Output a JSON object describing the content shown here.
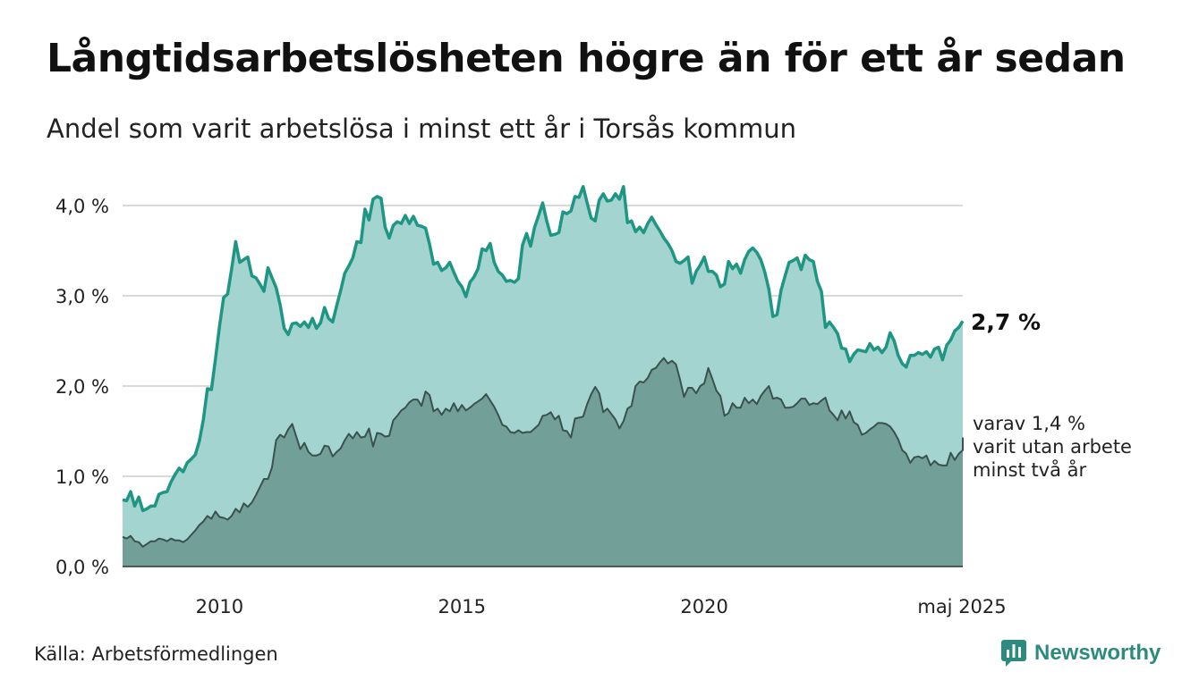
{
  "title": "Långtidsarbetslösheten högre än för ett år sedan",
  "subtitle": "Andel som varit arbetslösa i minst ett år i Torsås kommun",
  "source": "Källa: Arbetsförmedlingen",
  "brand": {
    "name": "Newsworthy",
    "icon": "newsworthy-logo-icon"
  },
  "colors": {
    "total_line": "#1f9683",
    "total_fill": "#a3d4cf",
    "long_line": "#3a524d",
    "long_fill": "#729f97",
    "grid": "#d9d9d9",
    "brand": "#2d8a7e"
  },
  "chart_data": {
    "type": "area",
    "x_start": 2008.0,
    "x_end": 2025.333,
    "x_step": 0.0833333,
    "ylim": [
      0,
      4.2
    ],
    "yticks": [
      0,
      1,
      2,
      3,
      4
    ],
    "ytick_labels": [
      "0,0 %",
      "1,0 %",
      "2,0 %",
      "3,0 %",
      "4,0 %"
    ],
    "xticks": [
      2010,
      2015,
      2020,
      2025.333
    ],
    "xtick_labels": [
      "2010",
      "2015",
      "2020",
      "maj 2025"
    ],
    "grid": "horizontal",
    "series": [
      {
        "key": "total",
        "end_label": "2,7 %",
        "values": [
          0.74,
          0.73,
          0.83,
          0.67,
          0.77,
          0.62,
          0.64,
          0.67,
          0.67,
          0.8,
          0.82,
          0.83,
          0.94,
          1.02,
          1.09,
          1.05,
          1.15,
          1.19,
          1.24,
          1.39,
          1.63,
          1.97,
          1.96,
          2.3,
          2.66,
          2.98,
          3.02,
          3.3,
          3.6,
          3.37,
          3.4,
          3.43,
          3.22,
          3.2,
          3.13,
          3.05,
          3.31,
          3.2,
          3.09,
          2.9,
          2.64,
          2.57,
          2.69,
          2.7,
          2.66,
          2.71,
          2.65,
          2.75,
          2.64,
          2.7,
          2.87,
          2.75,
          2.71,
          2.89,
          3.06,
          3.25,
          3.33,
          3.42,
          3.6,
          3.59,
          3.96,
          3.84,
          4.07,
          4.1,
          4.08,
          3.76,
          3.64,
          3.78,
          3.82,
          3.8,
          3.89,
          3.8,
          3.88,
          3.78,
          3.77,
          3.75,
          3.57,
          3.35,
          3.37,
          3.28,
          3.31,
          3.37,
          3.26,
          3.16,
          3.1,
          2.99,
          3.15,
          3.21,
          3.3,
          3.52,
          3.5,
          3.58,
          3.37,
          3.27,
          3.23,
          3.16,
          3.17,
          3.15,
          3.19,
          3.56,
          3.69,
          3.55,
          3.76,
          3.89,
          4.03,
          3.83,
          3.67,
          3.68,
          3.7,
          3.93,
          3.91,
          3.94,
          4.1,
          4.09,
          4.21,
          4.03,
          3.86,
          3.83,
          4.06,
          4.13,
          4.05,
          4.06,
          4.13,
          4.07,
          4.21,
          3.81,
          3.83,
          3.71,
          3.76,
          3.7,
          3.8,
          3.87,
          3.79,
          3.72,
          3.64,
          3.58,
          3.5,
          3.38,
          3.36,
          3.39,
          3.43,
          3.14,
          3.27,
          3.34,
          3.43,
          3.27,
          3.27,
          3.23,
          3.1,
          3.13,
          3.38,
          3.3,
          3.35,
          3.25,
          3.4,
          3.49,
          3.53,
          3.48,
          3.4,
          3.26,
          3.07,
          2.77,
          2.79,
          3.06,
          3.22,
          3.37,
          3.39,
          3.42,
          3.29,
          3.45,
          3.4,
          3.38,
          3.16,
          3.05,
          2.65,
          2.71,
          2.65,
          2.58,
          2.42,
          2.41,
          2.27,
          2.35,
          2.4,
          2.39,
          2.38,
          2.47,
          2.4,
          2.43,
          2.37,
          2.43,
          2.59,
          2.5,
          2.34,
          2.25,
          2.21,
          2.34,
          2.34,
          2.37,
          2.35,
          2.38,
          2.32,
          2.41,
          2.43,
          2.29,
          2.45,
          2.51,
          2.61,
          2.65,
          2.72
        ]
      },
      {
        "key": "long",
        "end_label": [
          "varav 1,4 %",
          "varit utan arbete",
          "minst två år"
        ],
        "values": [
          0.33,
          0.31,
          0.34,
          0.28,
          0.27,
          0.22,
          0.25,
          0.28,
          0.28,
          0.31,
          0.3,
          0.28,
          0.31,
          0.29,
          0.29,
          0.27,
          0.3,
          0.35,
          0.4,
          0.46,
          0.5,
          0.56,
          0.53,
          0.61,
          0.55,
          0.54,
          0.52,
          0.56,
          0.64,
          0.6,
          0.7,
          0.66,
          0.71,
          0.79,
          0.88,
          0.97,
          0.97,
          1.1,
          1.4,
          1.46,
          1.43,
          1.52,
          1.58,
          1.44,
          1.3,
          1.37,
          1.27,
          1.23,
          1.23,
          1.25,
          1.34,
          1.33,
          1.22,
          1.27,
          1.31,
          1.4,
          1.47,
          1.42,
          1.49,
          1.43,
          1.44,
          1.53,
          1.33,
          1.48,
          1.47,
          1.44,
          1.45,
          1.62,
          1.67,
          1.73,
          1.76,
          1.82,
          1.85,
          1.85,
          1.78,
          1.94,
          1.9,
          1.72,
          1.75,
          1.68,
          1.75,
          1.72,
          1.81,
          1.72,
          1.79,
          1.73,
          1.76,
          1.8,
          1.83,
          1.86,
          1.91,
          1.84,
          1.77,
          1.68,
          1.57,
          1.55,
          1.49,
          1.48,
          1.51,
          1.48,
          1.49,
          1.49,
          1.53,
          1.57,
          1.67,
          1.68,
          1.71,
          1.63,
          1.67,
          1.51,
          1.5,
          1.43,
          1.64,
          1.65,
          1.66,
          1.8,
          1.91,
          1.99,
          1.92,
          1.71,
          1.75,
          1.69,
          1.63,
          1.53,
          1.61,
          1.75,
          1.78,
          2.0,
          2.05,
          2.04,
          2.09,
          2.18,
          2.2,
          2.26,
          2.31,
          2.25,
          2.28,
          2.24,
          2.07,
          1.88,
          1.98,
          1.98,
          1.92,
          2.0,
          2.03,
          2.2,
          2.08,
          1.95,
          1.89,
          1.67,
          1.7,
          1.81,
          1.76,
          1.76,
          1.87,
          1.81,
          1.85,
          1.8,
          1.89,
          1.95,
          2.0,
          1.86,
          1.87,
          1.85,
          1.76,
          1.76,
          1.77,
          1.81,
          1.86,
          1.86,
          1.79,
          1.81,
          1.8,
          1.84,
          1.87,
          1.73,
          1.68,
          1.62,
          1.73,
          1.64,
          1.72,
          1.6,
          1.57,
          1.46,
          1.48,
          1.52,
          1.55,
          1.59,
          1.59,
          1.58,
          1.55,
          1.49,
          1.41,
          1.29,
          1.25,
          1.15,
          1.21,
          1.22,
          1.2,
          1.23,
          1.12,
          1.17,
          1.13,
          1.12,
          1.12,
          1.26,
          1.18,
          1.25,
          1.29,
          1.32,
          1.34,
          1.43
        ]
      }
    ]
  }
}
